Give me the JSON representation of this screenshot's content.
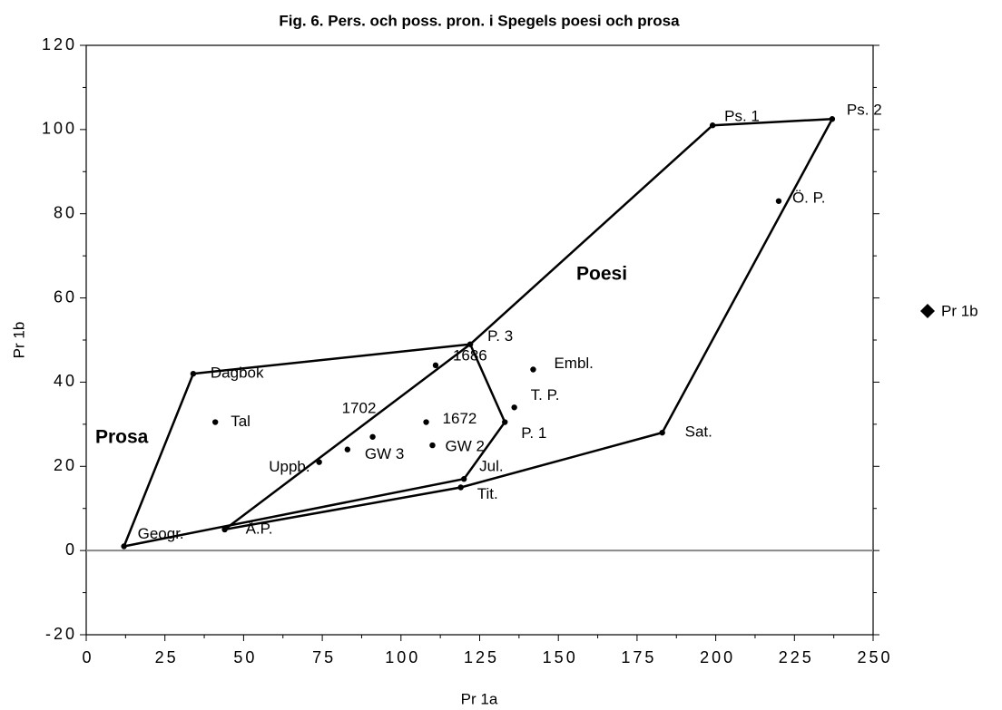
{
  "chart_data": {
    "type": "scatter",
    "title": "Fig. 6. Pers. och poss. pron. i Spegels poesi och prosa",
    "x_label": "Pr 1a",
    "y_label": "Pr 1b",
    "x": [
      12,
      44,
      34,
      41,
      74,
      83,
      91,
      111,
      108,
      110,
      122,
      142,
      136,
      133,
      120,
      119,
      183,
      199,
      237,
      220
    ],
    "series": [
      {
        "name": "Pr 1b",
        "color": "#000000",
        "values": [
          1,
          5,
          42,
          30.5,
          21,
          24,
          27,
          44,
          30.5,
          25,
          49,
          43,
          34,
          30.5,
          17,
          15,
          28,
          101,
          102.5,
          83
        ],
        "labels": [
          "Geogr.",
          "Å.P.",
          "Dagbok",
          "Tal",
          "Uppb.",
          "GW 3",
          "1702",
          "1686",
          "1672",
          "GW 2",
          "P. 3",
          "Embl.",
          "T. P.",
          "P. 1",
          "Jul.",
          "Tit.",
          "Sat.",
          "Ps. 1",
          "Ps. 2",
          "Ö. P."
        ]
      }
    ],
    "regions": [
      {
        "name": "Prosa",
        "vertices": [
          0,
          2,
          10,
          13,
          14,
          0
        ]
      },
      {
        "name": "Poesi",
        "vertices": [
          1,
          10,
          17,
          18,
          16,
          15,
          1
        ]
      }
    ],
    "xlim": [
      0,
      250
    ],
    "xticks": [
      0,
      25,
      50,
      75,
      100,
      125,
      150,
      175,
      200,
      225,
      250
    ],
    "ylim": [
      -20,
      120
    ],
    "yticks": [
      -20,
      0,
      20,
      40,
      60,
      80,
      100,
      120
    ],
    "zero_line": true,
    "legend": "right"
  }
}
